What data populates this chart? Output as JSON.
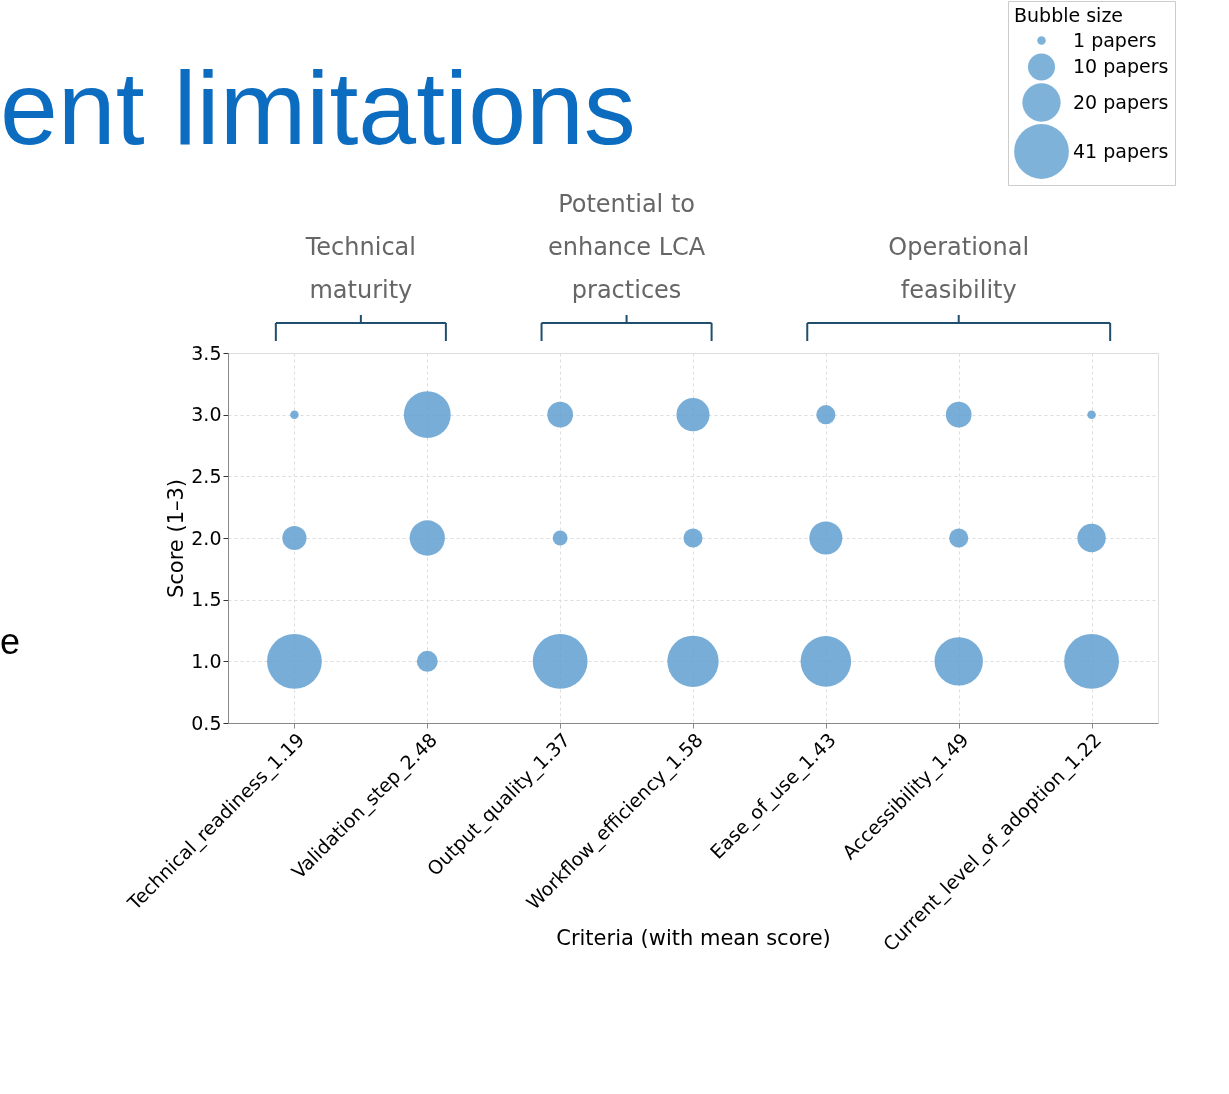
{
  "chart_data": {
    "type": "bubble",
    "title": "ent limitations",
    "categories": [
      "Technical_readiness_1.19",
      "Validation_step_2.48",
      "Output_quality_1.37",
      "Workflow_efficiency_1.58",
      "Ease_of_use_1.43",
      "Accessibility_1.49",
      "Current_level_of_adoption_1.22"
    ],
    "series": [
      {
        "color": "#5f9fd0",
        "values": [
          1,
          1,
          1,
          1,
          1,
          1,
          1
        ],
        "sizes": [
          41,
          6,
          41,
          36,
          35,
          32,
          41
        ]
      },
      {
        "color": "#5f9fd0",
        "values": [
          2,
          2,
          2,
          2,
          2,
          2,
          2
        ],
        "sizes": [
          8,
          17,
          3,
          5,
          15,
          5,
          11
        ]
      },
      {
        "color": "#5f9fd0",
        "values": [
          3,
          3,
          3,
          3,
          3,
          3,
          3
        ],
        "sizes": [
          1,
          30,
          9,
          15,
          5,
          9,
          1
        ]
      }
    ],
    "size_legend": [
      {
        "value": 1,
        "label": "1 papers"
      },
      {
        "value": 10,
        "label": "10 papers"
      },
      {
        "value": 20,
        "label": "20 papers"
      },
      {
        "value": 41,
        "label": "41 papers"
      }
    ],
    "legend_title": "Bubble size",
    "xlabel": "Criteria (with mean score)",
    "ylabel": "Score (1–3)",
    "ylim": [
      0.5,
      3.5
    ],
    "yticks": [
      {
        "value": 0.5,
        "label": "0.5"
      },
      {
        "value": 1,
        "label": "1.0"
      },
      {
        "value": 1.5,
        "label": "1.5"
      },
      {
        "value": 2,
        "label": "2.0"
      },
      {
        "value": 2.5,
        "label": "2.5"
      },
      {
        "value": 3,
        "label": "3.0"
      },
      {
        "value": 3.5,
        "label": "3.5"
      }
    ],
    "grid": true,
    "annotations": [
      "Technical\nmaturity",
      "Potential to\nenhance LCA\npractices",
      "Operational\nfeasibility",
      "e"
    ]
  }
}
